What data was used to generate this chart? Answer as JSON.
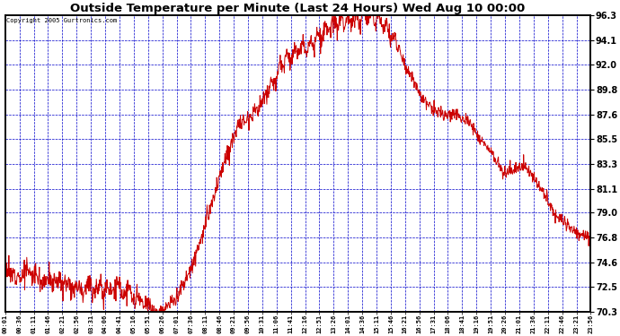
{
  "title": "Outside Temperature per Minute (Last 24 Hours) Wed Aug 10 00:00",
  "copyright": "Copyright 2005 Gurtronics.com",
  "background_color": "#ffffff",
  "plot_background": "#ffffff",
  "grid_color": "#0000cc",
  "line_color": "#cc0000",
  "ytick_labels": [
    70.3,
    72.5,
    74.6,
    76.8,
    79.0,
    81.1,
    83.3,
    85.5,
    87.6,
    89.8,
    92.0,
    94.1,
    96.3
  ],
  "ymin": 70.3,
  "ymax": 96.3,
  "xtick_labels": [
    "00:01",
    "00:36",
    "01:11",
    "01:46",
    "02:21",
    "02:56",
    "03:31",
    "04:06",
    "04:41",
    "05:16",
    "05:51",
    "06:26",
    "07:01",
    "07:36",
    "08:11",
    "08:46",
    "09:21",
    "09:56",
    "10:31",
    "11:06",
    "11:41",
    "12:16",
    "12:51",
    "13:26",
    "14:01",
    "14:36",
    "15:11",
    "15:46",
    "16:21",
    "16:56",
    "17:31",
    "18:06",
    "18:41",
    "19:16",
    "19:51",
    "20:26",
    "21:01",
    "21:36",
    "22:11",
    "22:46",
    "23:21",
    "23:56"
  ],
  "curve_keypoints_hours": [
    0,
    0.5,
    1.0,
    1.5,
    2.0,
    2.5,
    3.0,
    3.5,
    4.0,
    4.5,
    5.0,
    5.5,
    5.75,
    6.0,
    6.5,
    7.0,
    7.5,
    8.0,
    8.5,
    9.0,
    9.5,
    10.0,
    10.5,
    11.0,
    11.5,
    12.0,
    12.5,
    13.0,
    13.5,
    14.0,
    14.5,
    15.0,
    15.25,
    15.5,
    16.0,
    16.5,
    17.0,
    17.5,
    18.0,
    18.5,
    19.0,
    19.5,
    20.0,
    20.5,
    21.0,
    21.25,
    21.5,
    22.0,
    22.5,
    23.0,
    23.5,
    24.0
  ],
  "curve_keypoints_temp": [
    74.0,
    73.5,
    73.8,
    73.2,
    73.0,
    72.8,
    72.5,
    72.5,
    72.3,
    72.5,
    72.0,
    71.2,
    70.8,
    70.5,
    70.5,
    71.5,
    73.5,
    76.5,
    80.0,
    83.5,
    86.5,
    87.5,
    88.5,
    90.5,
    92.5,
    93.0,
    93.8,
    94.5,
    95.5,
    95.8,
    96.0,
    96.3,
    96.2,
    95.5,
    94.0,
    91.5,
    89.5,
    88.0,
    87.5,
    87.6,
    87.0,
    85.5,
    84.0,
    82.5,
    83.0,
    83.2,
    82.5,
    81.0,
    79.0,
    78.0,
    77.2,
    76.8
  ]
}
